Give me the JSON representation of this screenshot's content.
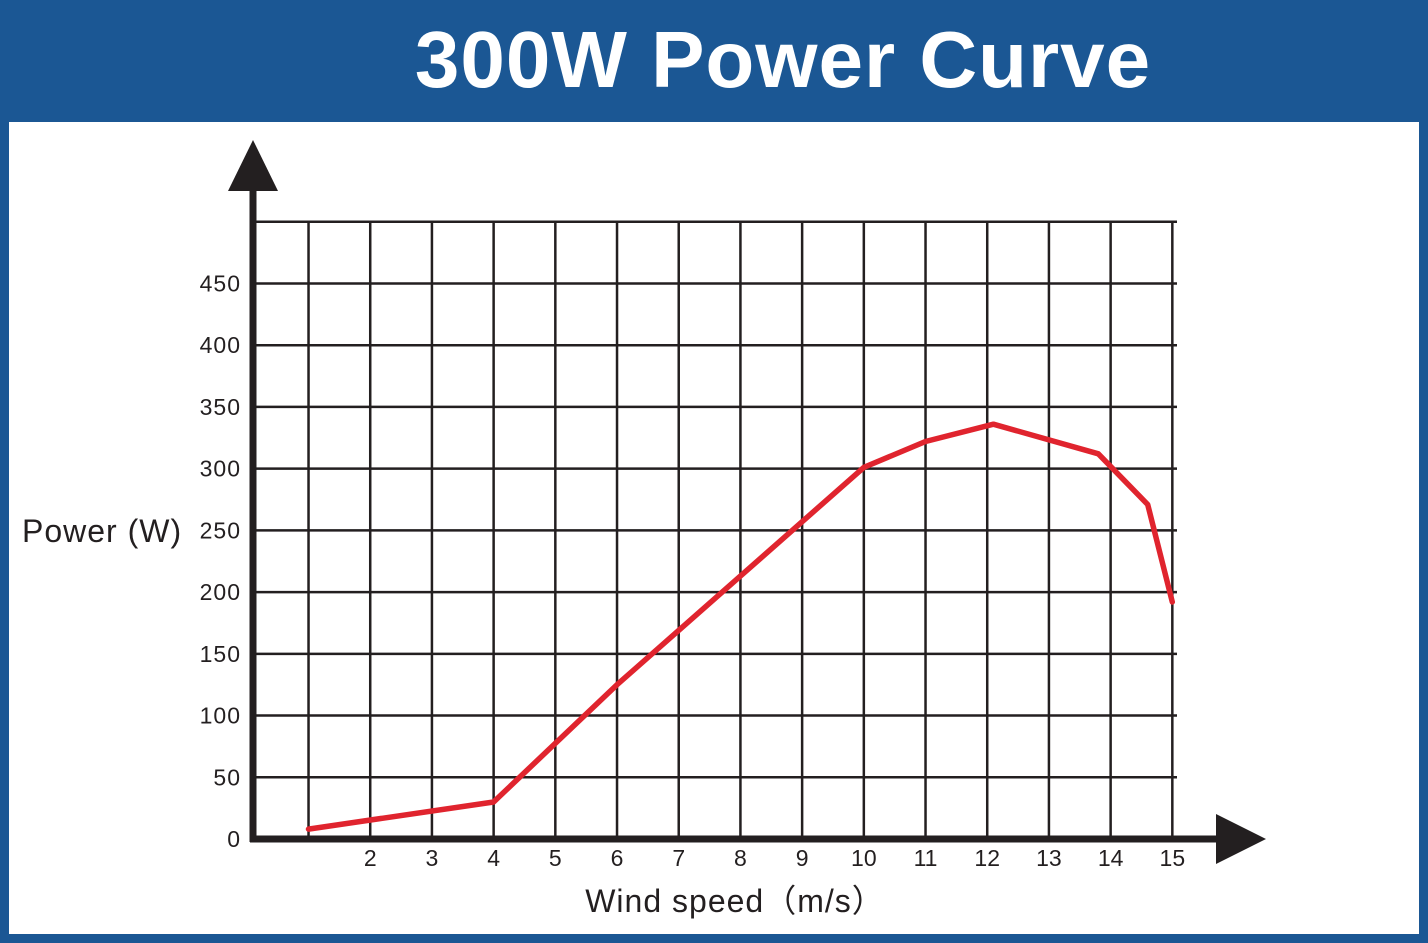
{
  "title": "300W Power Curve",
  "colors": {
    "header": "#1b5794",
    "curve": "#e0242e",
    "axis": "#231f20",
    "grid": "#231f20"
  },
  "chart_data": {
    "type": "line",
    "title": "300W Power Curve",
    "xlabel": "Wind speed（m/s）",
    "ylabel": "Power (W)",
    "x_ticks": [
      "2",
      "3",
      "4",
      "5",
      "6",
      "7",
      "8",
      "9",
      "10",
      "11",
      "12",
      "13",
      "14",
      "15"
    ],
    "y_ticks": [
      "0",
      "50",
      "100",
      "150",
      "200",
      "250",
      "300",
      "350",
      "400",
      "450"
    ],
    "xlim": [
      0.1,
      15
    ],
    "ylim": [
      0,
      500
    ],
    "grid": true,
    "series": [
      {
        "x": [
          1,
          4,
          6,
          8,
          10,
          11,
          12.1,
          13.8,
          14.6,
          15
        ],
        "y": [
          8,
          30,
          125,
          213,
          301,
          322,
          336,
          312,
          271,
          192
        ]
      }
    ]
  }
}
